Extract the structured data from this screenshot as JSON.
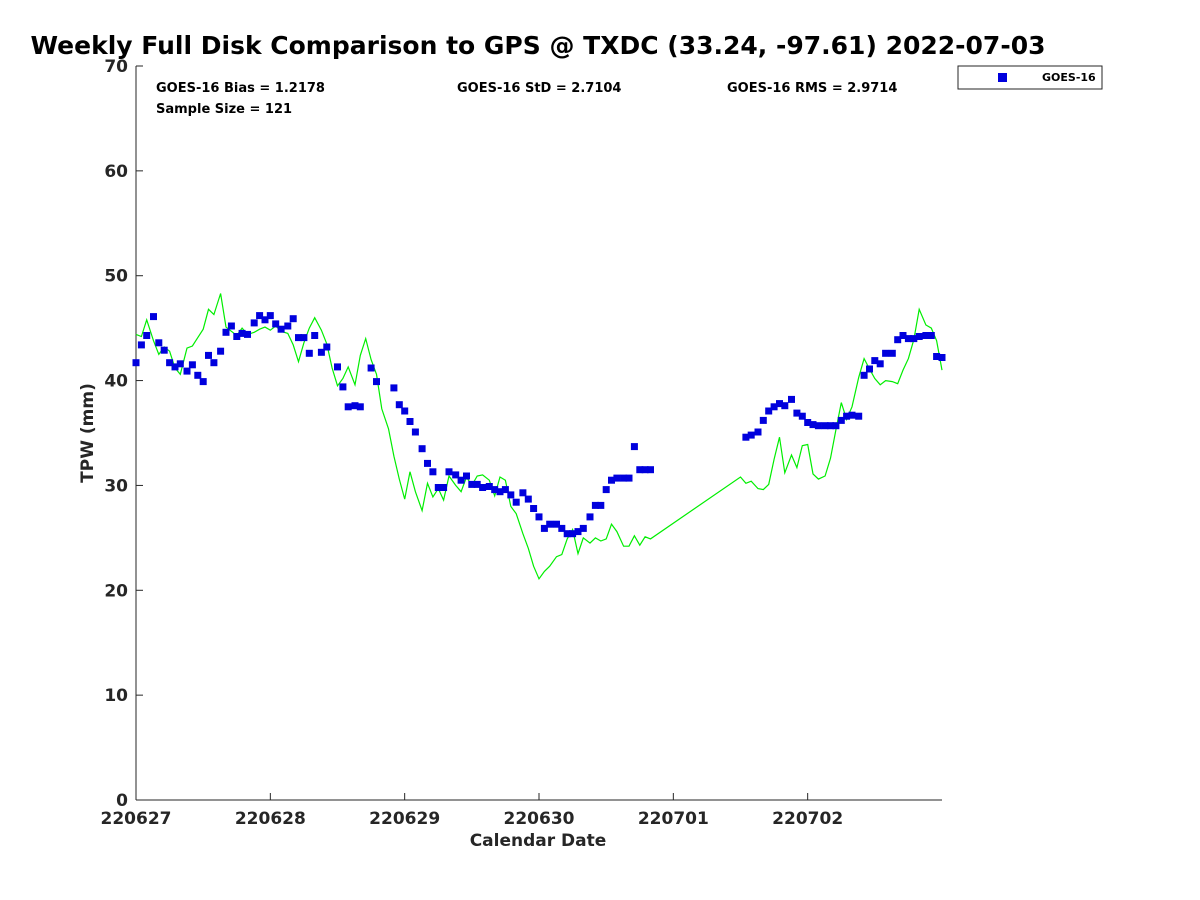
{
  "chart_data": {
    "type": "scatter",
    "title": "Weekly Full Disk Comparison to GPS @ TXDC (33.24, -97.61) 2022-07-03",
    "xlabel": "Calendar Date",
    "ylabel": "TPW (mm)",
    "xlim": [
      0,
      6.0
    ],
    "ylim": [
      0,
      70
    ],
    "x_tick_labels": [
      "220627",
      "220628",
      "220629",
      "220630",
      "220701",
      "220702"
    ],
    "y_tick_labels": [
      "0",
      "10",
      "20",
      "30",
      "40",
      "50",
      "60",
      "70"
    ],
    "stats": {
      "bias": "GOES-16 Bias = 1.2178",
      "std": "GOES-16 StD = 2.7104",
      "rms": "GOES-16 RMS = 2.9714",
      "sample": "Sample Size = 121"
    },
    "legend": {
      "location": "top-right",
      "entries": [
        "GOES-16"
      ]
    },
    "colors": {
      "goes16": "#0000dd",
      "gps": "#00ee00"
    },
    "series": [
      {
        "name": "GOES-16",
        "marker": "square",
        "x": [
          0.0,
          0.04,
          0.08,
          0.13,
          0.17,
          0.21,
          0.25,
          0.29,
          0.33,
          0.38,
          0.42,
          0.46,
          0.5,
          0.54,
          0.58,
          0.63,
          0.67,
          0.71,
          0.75,
          0.79,
          0.83,
          0.88,
          0.92,
          0.96,
          1.0,
          1.04,
          1.08,
          1.13,
          1.17,
          1.21,
          1.25,
          1.29,
          1.33,
          1.38,
          1.42,
          1.5,
          1.54,
          1.58,
          1.63,
          1.67,
          1.75,
          1.79,
          1.92,
          1.96,
          2.0,
          2.04,
          2.08,
          2.13,
          2.17,
          2.21,
          2.25,
          2.29,
          2.33,
          2.38,
          2.42,
          2.46,
          2.5,
          2.54,
          2.58,
          2.63,
          2.67,
          2.71,
          2.75,
          2.79,
          2.83,
          2.88,
          2.92,
          2.96,
          3.0,
          3.04,
          3.08,
          3.13,
          3.17,
          3.21,
          3.25,
          3.29,
          3.33,
          3.38,
          3.42,
          3.46,
          3.5,
          3.54,
          3.58,
          3.63,
          3.67,
          3.71,
          3.75,
          3.79,
          3.83,
          4.54,
          4.58,
          4.63,
          4.67,
          4.71,
          4.75,
          4.79,
          4.83,
          4.88,
          4.92,
          4.96,
          5.0,
          5.04,
          5.08,
          5.13,
          5.17,
          5.21,
          5.25,
          5.29,
          5.33,
          5.38,
          5.42,
          5.46,
          5.5,
          5.54,
          5.58,
          5.63,
          5.67,
          5.71,
          5.75,
          5.79,
          5.83,
          5.88,
          5.92,
          5.96,
          6.0
        ],
        "y": [
          41.7,
          43.4,
          44.3,
          46.1,
          43.6,
          42.9,
          41.7,
          41.3,
          41.6,
          40.9,
          41.5,
          40.5,
          39.9,
          42.4,
          41.7,
          42.8,
          44.6,
          45.2,
          44.2,
          44.5,
          44.4,
          45.5,
          46.2,
          45.8,
          46.2,
          45.4,
          44.9,
          45.2,
          45.9,
          44.1,
          44.1,
          42.6,
          44.3,
          42.7,
          43.2,
          41.3,
          39.4,
          37.5,
          37.6,
          37.5,
          41.2,
          39.9,
          39.3,
          37.7,
          37.1,
          36.1,
          35.1,
          33.5,
          32.1,
          31.3,
          29.8,
          29.8,
          31.3,
          31.0,
          30.5,
          30.9,
          30.1,
          30.1,
          29.8,
          29.9,
          29.6,
          29.4,
          29.6,
          29.1,
          28.4,
          29.3,
          28.7,
          27.8,
          27.0,
          25.9,
          26.3,
          26.3,
          25.9,
          25.4,
          25.4,
          25.6,
          25.9,
          27.0,
          28.1,
          28.1,
          29.6,
          30.5,
          30.7,
          30.7,
          30.7,
          33.7,
          31.5,
          31.5,
          31.5,
          34.6,
          34.8,
          35.1,
          36.2,
          37.1,
          37.5,
          37.8,
          37.6,
          38.2,
          36.9,
          36.6,
          36.0,
          35.8,
          35.7,
          35.7,
          35.7,
          35.7,
          36.2,
          36.6,
          36.7,
          36.6,
          40.5,
          41.1,
          41.9,
          41.6,
          42.6,
          42.6,
          43.9,
          44.3,
          44.0,
          44.0,
          44.2,
          44.3,
          44.3,
          42.3,
          42.2
        ]
      },
      {
        "name": "",
        "marker": "line",
        "x": [
          0.0,
          0.04,
          0.08,
          0.13,
          0.17,
          0.21,
          0.25,
          0.29,
          0.33,
          0.38,
          0.42,
          0.46,
          0.5,
          0.54,
          0.58,
          0.63,
          0.67,
          0.71,
          0.75,
          0.79,
          0.83,
          0.88,
          0.92,
          0.96,
          1.0,
          1.04,
          1.08,
          1.13,
          1.17,
          1.21,
          1.25,
          1.29,
          1.33,
          1.38,
          1.42,
          1.46,
          1.5,
          1.54,
          1.58,
          1.63,
          1.67,
          1.71,
          1.75,
          1.79,
          1.83,
          1.88,
          1.92,
          1.96,
          2.0,
          2.04,
          2.08,
          2.13,
          2.17,
          2.21,
          2.25,
          2.29,
          2.33,
          2.38,
          2.42,
          2.46,
          2.5,
          2.54,
          2.58,
          2.63,
          2.67,
          2.71,
          2.75,
          2.79,
          2.83,
          2.88,
          2.92,
          2.96,
          3.0,
          3.04,
          3.08,
          3.13,
          3.17,
          3.21,
          3.25,
          3.29,
          3.33,
          3.38,
          3.42,
          3.46,
          3.5,
          3.54,
          3.58,
          3.63,
          3.67,
          3.71,
          3.75,
          3.79,
          3.83,
          4.5,
          4.54,
          4.58,
          4.63,
          4.67,
          4.71,
          4.75,
          4.79,
          4.83,
          4.88,
          4.92,
          4.96,
          5.0,
          5.04,
          5.08,
          5.13,
          5.17,
          5.21,
          5.25,
          5.29,
          5.33,
          5.38,
          5.42,
          5.46,
          5.5,
          5.54,
          5.58,
          5.63,
          5.67,
          5.71,
          5.75,
          5.79,
          5.83,
          5.88,
          5.92,
          5.96,
          6.0
        ],
        "y": [
          44.4,
          44.2,
          45.8,
          43.8,
          42.5,
          43.2,
          42.8,
          41.2,
          40.6,
          43.1,
          43.3,
          44.1,
          44.9,
          46.8,
          46.3,
          48.3,
          45.1,
          44.7,
          44.3,
          45.0,
          44.4,
          44.6,
          44.9,
          45.1,
          44.8,
          45.2,
          44.7,
          44.5,
          43.4,
          41.8,
          43.6,
          45.0,
          46.0,
          44.8,
          43.5,
          41.2,
          39.5,
          40.2,
          41.3,
          39.6,
          42.4,
          44.0,
          42.0,
          40.6,
          37.3,
          35.4,
          32.8,
          30.6,
          28.7,
          31.3,
          29.4,
          27.6,
          30.2,
          28.9,
          29.7,
          28.6,
          30.9,
          30.0,
          29.4,
          30.8,
          30.0,
          30.9,
          31.0,
          30.5,
          29.0,
          30.8,
          30.5,
          28.0,
          27.3,
          25.4,
          24.0,
          22.3,
          21.1,
          21.8,
          22.3,
          23.2,
          23.4,
          24.9,
          25.8,
          23.5,
          25.0,
          24.5,
          25.0,
          24.7,
          24.9,
          26.3,
          25.6,
          24.2,
          24.2,
          25.2,
          24.3,
          25.1,
          24.9,
          30.8,
          30.2,
          30.4,
          29.7,
          29.6,
          30.1,
          32.5,
          34.6,
          31.2,
          32.9,
          31.7,
          33.8,
          33.9,
          31.1,
          30.6,
          30.9,
          32.6,
          35.3,
          37.9,
          36.3,
          37.5,
          40.3,
          42.1,
          41.1,
          40.2,
          39.6,
          40.0,
          39.9,
          39.7,
          41.0,
          42.1,
          43.9,
          46.8,
          45.3,
          45.0,
          43.8,
          41.0
        ]
      }
    ]
  }
}
